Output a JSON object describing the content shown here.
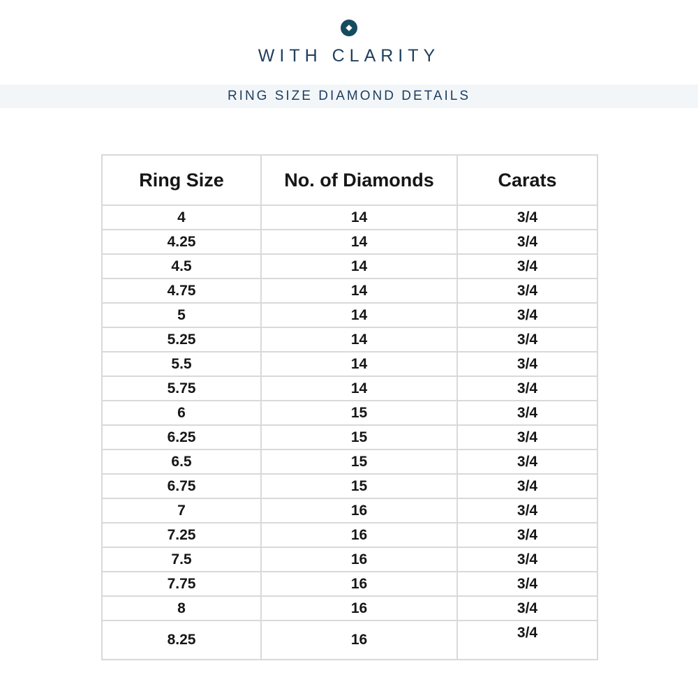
{
  "brand": {
    "name": "WITH CLARITY",
    "logo_icon": "diamond-in-circle-icon",
    "accent_color": "#154a5f",
    "text_color": "#20405e"
  },
  "banner": {
    "title": "RING SIZE DIAMOND DETAILS",
    "background_color": "#f3f6f9",
    "text_color": "#1d3d5e"
  },
  "chart_data": {
    "type": "table",
    "title": "RING SIZE DIAMOND DETAILS",
    "columns": [
      "Ring Size",
      "No. of Diamonds",
      "Carats"
    ],
    "rows": [
      [
        "4",
        "14",
        "3/4"
      ],
      [
        "4.25",
        "14",
        "3/4"
      ],
      [
        "4.5",
        "14",
        "3/4"
      ],
      [
        "4.75",
        "14",
        "3/4"
      ],
      [
        "5",
        "14",
        "3/4"
      ],
      [
        "5.25",
        "14",
        "3/4"
      ],
      [
        "5.5",
        "14",
        "3/4"
      ],
      [
        "5.75",
        "14",
        "3/4"
      ],
      [
        "6",
        "15",
        "3/4"
      ],
      [
        "6.25",
        "15",
        "3/4"
      ],
      [
        "6.5",
        "15",
        "3/4"
      ],
      [
        "6.75",
        "15",
        "3/4"
      ],
      [
        "7",
        "16",
        "3/4"
      ],
      [
        "7.25",
        "16",
        "3/4"
      ],
      [
        "7.5",
        "16",
        "3/4"
      ],
      [
        "7.75",
        "16",
        "3/4"
      ],
      [
        "8",
        "16",
        "3/4"
      ],
      [
        "8.25",
        "16",
        "3/4"
      ]
    ],
    "layout": {
      "grid": "all-borders",
      "header_row": true,
      "border_color": "#d9d9d9"
    }
  }
}
